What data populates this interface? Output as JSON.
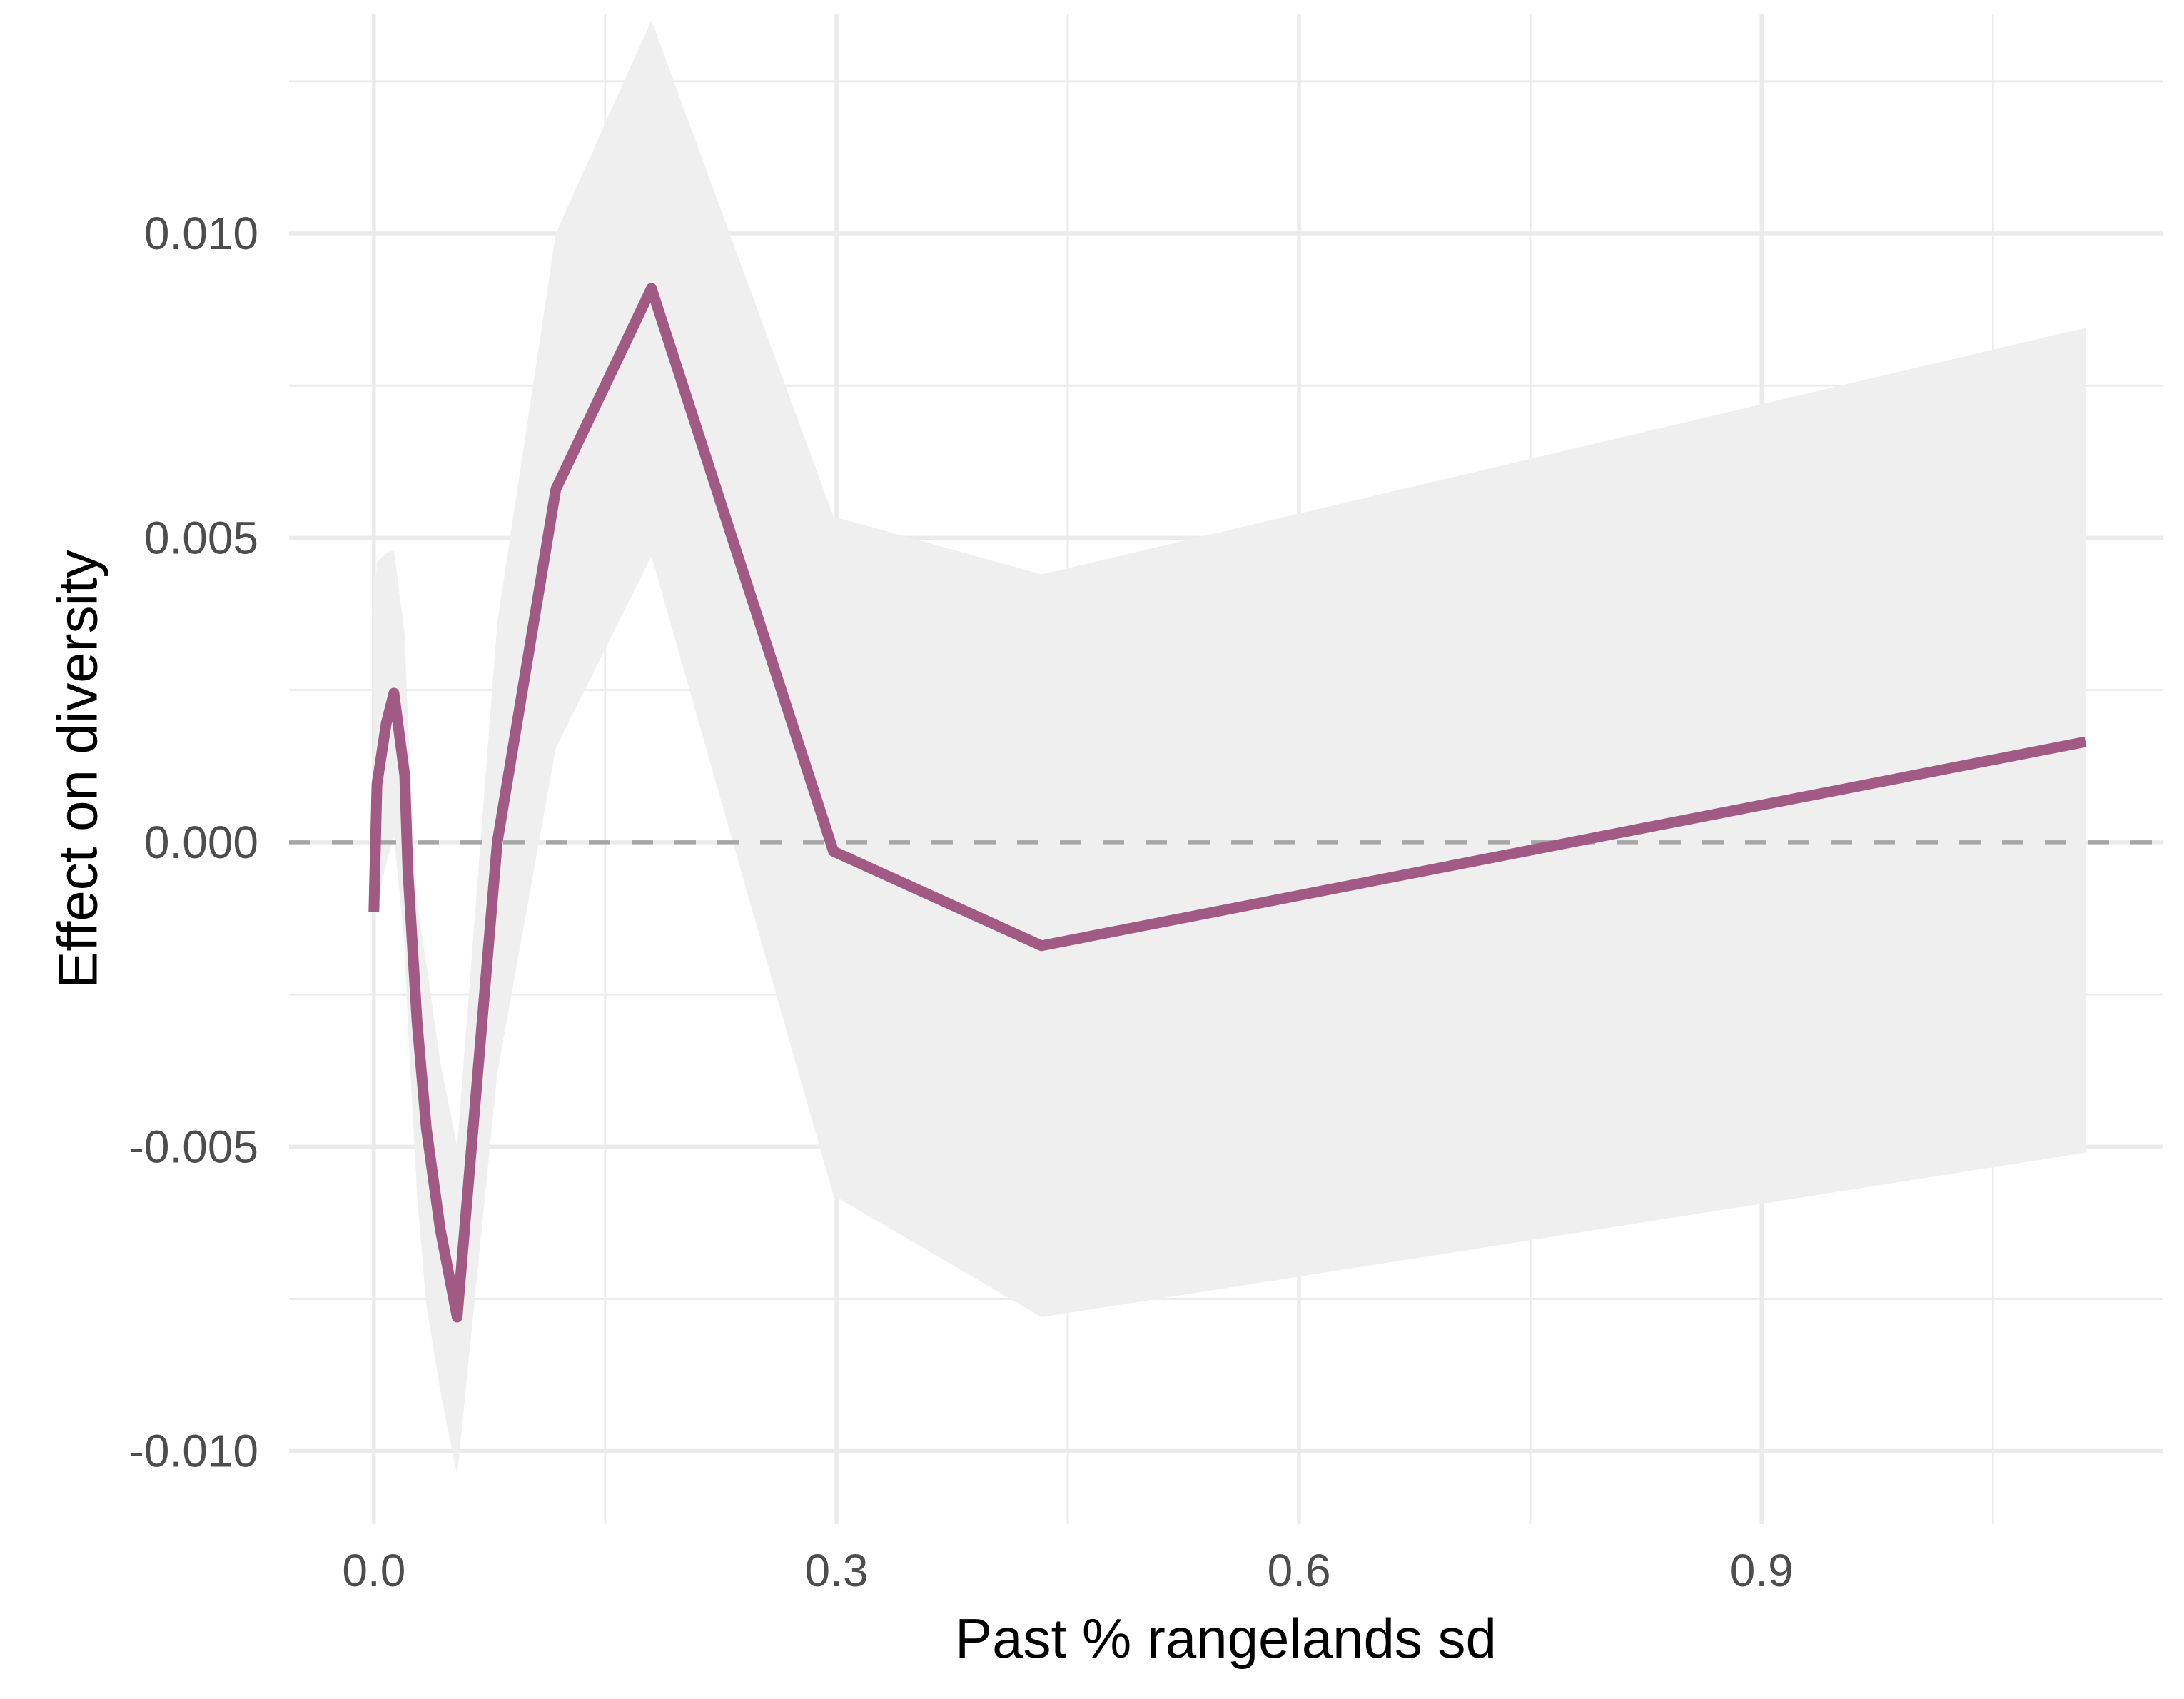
{
  "chart_data": {
    "type": "line",
    "title": "",
    "xlabel": "Past % rangelands sd",
    "ylabel": "Effect on diversity",
    "xlim": [
      -0.055,
      1.16
    ],
    "ylim": [
      -0.0112,
      0.0136
    ],
    "x_ticks": [
      0.0,
      0.3,
      0.6,
      0.9
    ],
    "x_tick_labels": [
      "0.0",
      "0.3",
      "0.6",
      "0.9"
    ],
    "x_minor_ticks": [
      0.15,
      0.45,
      0.75,
      1.05
    ],
    "y_ticks": [
      -0.01,
      -0.005,
      0.0,
      0.005,
      0.01
    ],
    "y_tick_labels": [
      "-0.010",
      "-0.005",
      "0.000",
      "0.005",
      "0.010"
    ],
    "y_minor_ticks": [
      -0.0075,
      -0.0025,
      0.0025,
      0.0075,
      0.0125
    ],
    "grid": true,
    "legend": "none",
    "reference_line": {
      "y": 0.0,
      "style": "dashed",
      "color": "#a6a6a6"
    },
    "series": [
      {
        "x": [
          0.0,
          0.002,
          0.008,
          0.013,
          0.02,
          0.022,
          0.028,
          0.034,
          0.043,
          0.054,
          0.08,
          0.118,
          0.18,
          0.298,
          0.433,
          1.11
        ],
        "y": [
          -0.00115,
          0.00095,
          0.00195,
          0.00245,
          0.0011,
          -0.00045,
          -0.00295,
          -0.0047,
          -0.00635,
          -0.0078,
          0.0,
          0.0058,
          0.0091,
          -0.00015,
          -0.0017,
          0.00165
        ],
        "lower": [
          -0.00135,
          -0.001,
          -0.00035,
          0.0001,
          -0.0017,
          -0.003,
          -0.0058,
          -0.0076,
          -0.009,
          -0.0104,
          -0.0038,
          0.00155,
          0.0047,
          -0.0058,
          -0.0078,
          -0.0051
        ],
        "upper": [
          0.0038,
          0.0046,
          0.00475,
          0.0048,
          0.0034,
          0.002,
          -0.001,
          -0.002,
          -0.0036,
          -0.005,
          0.0036,
          0.01,
          0.0135,
          0.00535,
          0.0044,
          0.00845
        ],
        "color": "#a05a84",
        "ribbon_color": "#efefef"
      }
    ]
  }
}
